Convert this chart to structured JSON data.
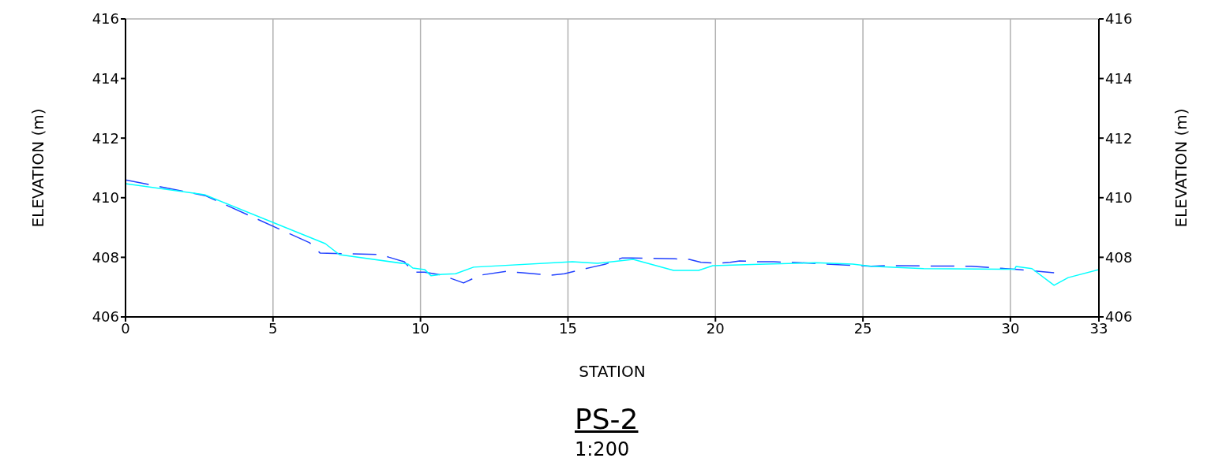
{
  "chart_data": {
    "type": "line",
    "title": "PS-2",
    "subtitle": "1:200",
    "xlabel": "STATION",
    "ylabel": "ELEVATION (m)",
    "y2label": "ELEVATION (m)",
    "xlim": [
      0,
      33
    ],
    "xticks": [
      0,
      5,
      10,
      15,
      20,
      25,
      30,
      33
    ],
    "ylim": [
      406,
      416
    ],
    "yticks": [
      406,
      408,
      410,
      412,
      414,
      416
    ],
    "y2lim": [
      406,
      416
    ],
    "y2ticks": [
      406,
      408,
      410,
      412,
      414,
      416
    ],
    "grid": true,
    "marker": "none",
    "series": [
      {
        "color": "#2040ff",
        "line_style": "dashed",
        "x": [
          0,
          2.7,
          6.24,
          6.6,
          8.67,
          8.94,
          9.45,
          9.77,
          10.14,
          10.73,
          11.46,
          12.02,
          12.93,
          13.46,
          14.4,
          14.88,
          15.82,
          16.27,
          16.84,
          17.16,
          18.63,
          19.11,
          19.51,
          20.05,
          20.5,
          20.82,
          21.49,
          21.97,
          22.86,
          25.27,
          25.78,
          28.67,
          30.14,
          30.6,
          31.48
        ],
        "values": [
          410.6,
          410.07,
          408.49,
          408.14,
          408.09,
          408.0,
          407.85,
          407.5,
          407.5,
          407.4,
          407.14,
          407.4,
          407.53,
          407.48,
          407.4,
          407.45,
          407.67,
          407.77,
          407.98,
          407.98,
          407.95,
          407.93,
          407.83,
          407.8,
          407.83,
          407.88,
          407.85,
          407.85,
          407.82,
          407.7,
          407.72,
          407.7,
          407.6,
          407.56,
          407.48
        ]
      },
      {
        "color": "#00ffff",
        "line_style": "solid",
        "x": [
          0,
          2.68,
          6.77,
          7.25,
          9.58,
          9.74,
          10.14,
          10.36,
          10.73,
          11.19,
          11.8,
          15.15,
          16.0,
          17.21,
          18.58,
          19.43,
          19.91,
          21.7,
          23.39,
          24.65,
          25.27,
          27.06,
          30.14,
          30.19,
          30.73,
          31.48,
          31.96,
          33
        ],
        "values": [
          410.47,
          410.1,
          408.46,
          408.09,
          407.77,
          407.64,
          407.59,
          407.38,
          407.43,
          407.45,
          407.67,
          407.85,
          407.8,
          407.93,
          407.56,
          407.56,
          407.72,
          407.77,
          407.82,
          407.77,
          407.7,
          407.62,
          407.6,
          407.69,
          407.62,
          407.06,
          407.32,
          407.59
        ]
      }
    ]
  }
}
